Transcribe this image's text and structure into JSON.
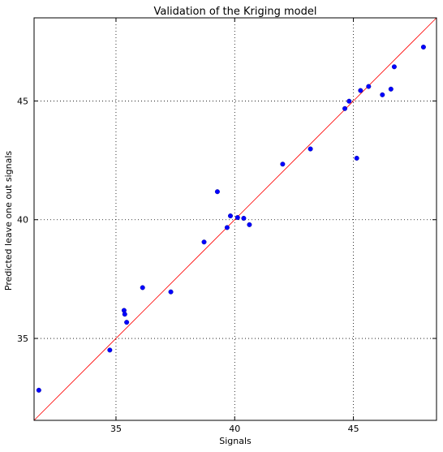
{
  "chart_data": {
    "type": "scatter",
    "title": "Validation of the Kriging model",
    "xlabel": "Signals",
    "ylabel": "Predicted leave one out signals",
    "xlim": [
      31.55,
      48.5
    ],
    "ylim": [
      31.55,
      48.5
    ],
    "xticks": [
      35,
      40,
      45
    ],
    "yticks": [
      35,
      40,
      45
    ],
    "grid": true,
    "grid_style": "dotted",
    "colors": {
      "points": "#0000ff",
      "diagonal": "#ff0000",
      "frame": "#000000",
      "grid": "#000000"
    },
    "reference_line": "y = x",
    "series": [
      {
        "points": [
          {
            "x": 31.75,
            "y": 32.82
          },
          {
            "x": 34.74,
            "y": 34.51
          },
          {
            "x": 35.34,
            "y": 36.18
          },
          {
            "x": 35.37,
            "y": 36.02
          },
          {
            "x": 35.45,
            "y": 35.68
          },
          {
            "x": 36.12,
            "y": 37.14
          },
          {
            "x": 37.31,
            "y": 36.96
          },
          {
            "x": 38.71,
            "y": 39.06
          },
          {
            "x": 39.27,
            "y": 41.18
          },
          {
            "x": 39.68,
            "y": 39.67
          },
          {
            "x": 39.82,
            "y": 40.16
          },
          {
            "x": 40.12,
            "y": 40.09
          },
          {
            "x": 40.38,
            "y": 40.06
          },
          {
            "x": 40.62,
            "y": 39.79
          },
          {
            "x": 42.02,
            "y": 42.34
          },
          {
            "x": 43.19,
            "y": 42.98
          },
          {
            "x": 44.64,
            "y": 44.68
          },
          {
            "x": 44.82,
            "y": 44.99
          },
          {
            "x": 45.14,
            "y": 42.59
          },
          {
            "x": 45.3,
            "y": 45.44
          },
          {
            "x": 45.64,
            "y": 45.61
          },
          {
            "x": 46.22,
            "y": 45.26
          },
          {
            "x": 46.58,
            "y": 45.5
          },
          {
            "x": 46.72,
            "y": 46.44
          },
          {
            "x": 47.95,
            "y": 47.27
          }
        ]
      }
    ]
  }
}
